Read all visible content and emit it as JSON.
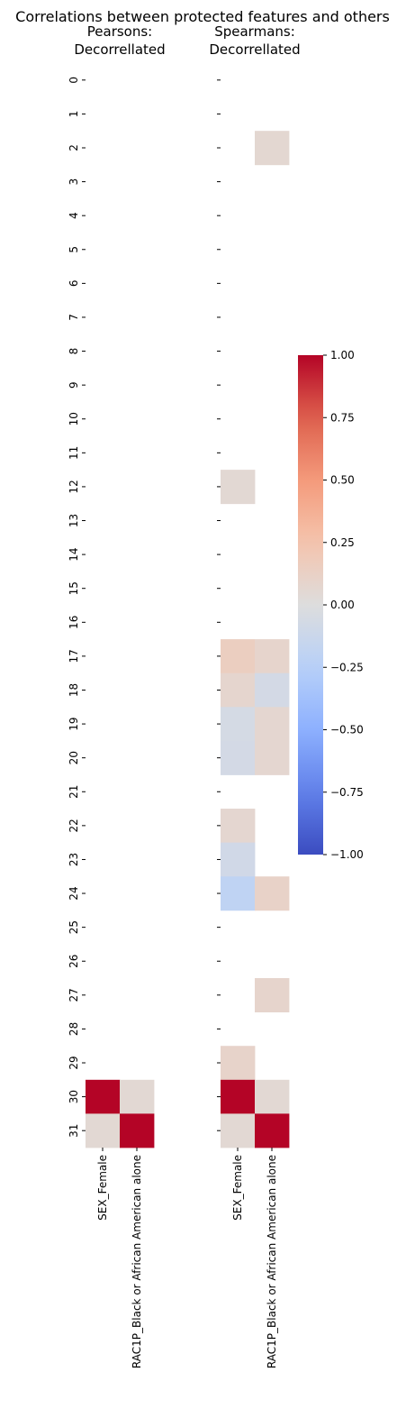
{
  "title": "Correlations between protected features and others",
  "chart_data": [
    {
      "type": "heatmap",
      "title_lines": [
        "Pearsons:",
        "Decorrellated"
      ],
      "xlabels": [
        "SEX_Female",
        "RAC1P_Black or African American alone"
      ],
      "ylabels": [
        "0",
        "1",
        "2",
        "3",
        "4",
        "5",
        "6",
        "7",
        "8",
        "9",
        "10",
        "11",
        "12",
        "13",
        "14",
        "15",
        "16",
        "17",
        "18",
        "19",
        "20",
        "21",
        "22",
        "23",
        "24",
        "25",
        "26",
        "27",
        "28",
        "29",
        "30",
        "31"
      ],
      "values": [
        [
          null,
          null
        ],
        [
          null,
          null
        ],
        [
          null,
          null
        ],
        [
          null,
          null
        ],
        [
          null,
          null
        ],
        [
          null,
          null
        ],
        [
          null,
          null
        ],
        [
          null,
          null
        ],
        [
          null,
          null
        ],
        [
          null,
          null
        ],
        [
          null,
          null
        ],
        [
          null,
          null
        ],
        [
          null,
          null
        ],
        [
          null,
          null
        ],
        [
          null,
          null
        ],
        [
          null,
          null
        ],
        [
          null,
          null
        ],
        [
          null,
          null
        ],
        [
          null,
          null
        ],
        [
          null,
          null
        ],
        [
          null,
          null
        ],
        [
          null,
          null
        ],
        [
          null,
          null
        ],
        [
          null,
          null
        ],
        [
          null,
          null
        ],
        [
          null,
          null
        ],
        [
          null,
          null
        ],
        [
          null,
          null
        ],
        [
          null,
          null
        ],
        [
          null,
          null
        ],
        [
          1.0,
          0.05
        ],
        [
          0.05,
          1.0
        ]
      ]
    },
    {
      "type": "heatmap",
      "title_lines": [
        "Spearmans:",
        "Decorrellated"
      ],
      "xlabels": [
        "SEX_Female",
        "RAC1P_Black or African American alone"
      ],
      "ylabels": [
        "0",
        "1",
        "2",
        "3",
        "4",
        "5",
        "6",
        "7",
        "8",
        "9",
        "10",
        "11",
        "12",
        "13",
        "14",
        "15",
        "16",
        "17",
        "18",
        "19",
        "20",
        "21",
        "22",
        "23",
        "24",
        "25",
        "26",
        "27",
        "28",
        "29",
        "30",
        "31"
      ],
      "values": [
        [
          null,
          null
        ],
        [
          null,
          null
        ],
        [
          null,
          0.06
        ],
        [
          null,
          null
        ],
        [
          null,
          null
        ],
        [
          null,
          null
        ],
        [
          null,
          null
        ],
        [
          null,
          null
        ],
        [
          null,
          null
        ],
        [
          null,
          null
        ],
        [
          null,
          null
        ],
        [
          null,
          null
        ],
        [
          0.05,
          null
        ],
        [
          null,
          null
        ],
        [
          null,
          null
        ],
        [
          null,
          null
        ],
        [
          null,
          null
        ],
        [
          0.15,
          0.09
        ],
        [
          0.08,
          -0.07
        ],
        [
          -0.06,
          0.07
        ],
        [
          -0.07,
          0.07
        ],
        [
          null,
          null
        ],
        [
          0.07,
          null
        ],
        [
          -0.09,
          null
        ],
        [
          -0.2,
          0.11
        ],
        [
          null,
          null
        ],
        [
          null,
          null
        ],
        [
          null,
          0.09
        ],
        [
          null,
          null
        ],
        [
          0.1,
          null
        ],
        [
          1.0,
          0.05
        ],
        [
          0.05,
          1.0
        ]
      ]
    }
  ],
  "colorbar": {
    "colormap": "coolwarm",
    "vmin": -1.0,
    "vmax": 1.0,
    "ticks": [
      "1.00",
      "0.75",
      "0.50",
      "0.25",
      "0.00",
      "−0.25",
      "−0.50",
      "−0.75",
      "−1.00"
    ]
  }
}
